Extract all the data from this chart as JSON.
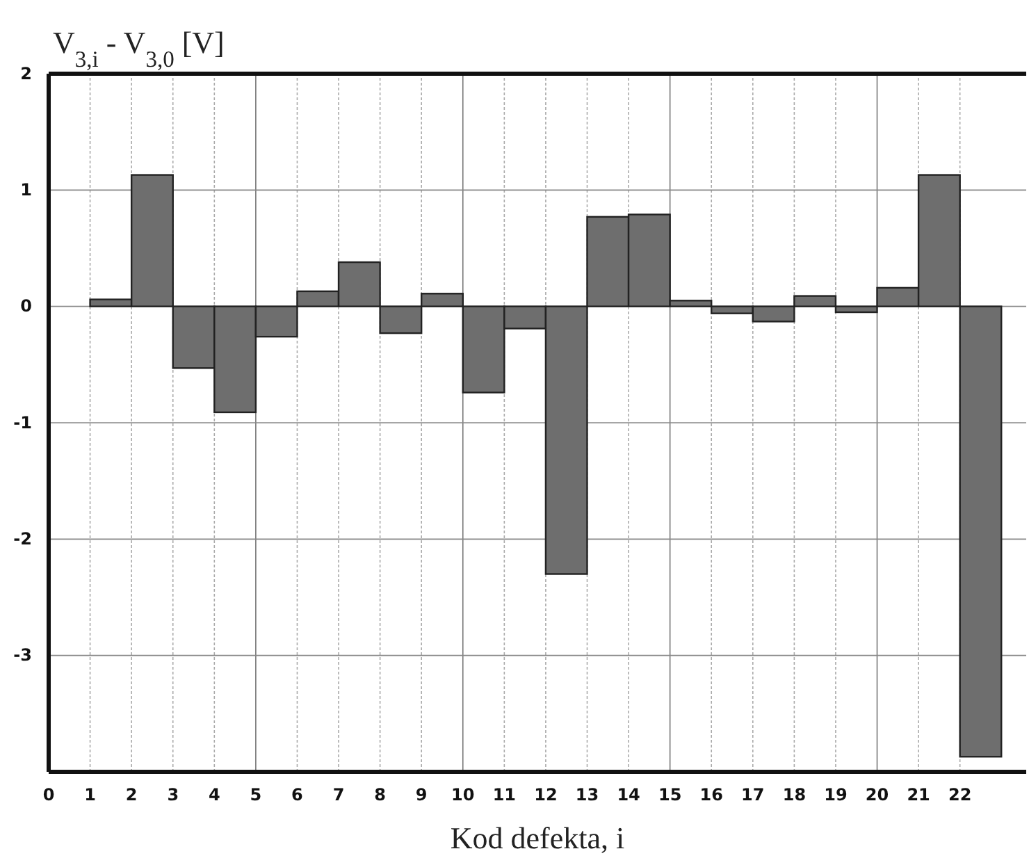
{
  "chart_data": {
    "type": "histogram",
    "ylabel": "V$_{3,i}$ - V$_{3,0}$ [V]",
    "xlabel": "Kod defekta, i",
    "bins": [
      1,
      2,
      3,
      4,
      5,
      6,
      7,
      8,
      9,
      10,
      11,
      12,
      13,
      14,
      15,
      16,
      17,
      18,
      19,
      20,
      21,
      22,
      23
    ],
    "values": [
      0.06,
      1.13,
      -0.53,
      -0.91,
      -0.26,
      0.13,
      0.38,
      -0.23,
      0.11,
      -0.74,
      -0.19,
      -2.3,
      0.77,
      0.79,
      0.05,
      -0.06,
      -0.13,
      0.09,
      -0.05,
      0.16,
      1.13,
      -3.87
    ],
    "color": "#6e6e6e",
    "xlim": [
      0,
      23.6
    ],
    "xticks": [
      0,
      1,
      2,
      3,
      4,
      5,
      6,
      7,
      8,
      9,
      10,
      11,
      12,
      13,
      14,
      15,
      16,
      17,
      18,
      19,
      20,
      21,
      22
    ],
    "ylim": [
      -4,
      2
    ],
    "yticks": [
      {
        "value": -4,
        "label": null
      },
      -3,
      -2,
      -1,
      0,
      1,
      2
    ],
    "grid": true
  }
}
